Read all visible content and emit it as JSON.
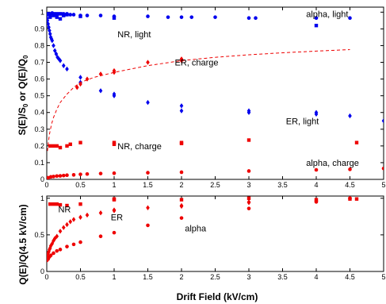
{
  "chart_data": [
    {
      "type": "scatter",
      "title": "",
      "xlabel": "",
      "ylabel_parts": [
        "S(E)/S",
        "0",
        " or Q(E)/Q",
        "0"
      ],
      "xlim": [
        0,
        5
      ],
      "ylim": [
        0,
        1.03
      ],
      "x_ticks": [
        "0",
        "0.5",
        "1",
        "1.5",
        "2",
        "2.5",
        "3",
        "3.5",
        "4",
        "4.5",
        "5"
      ],
      "y_ticks": [
        "0",
        "0.1",
        "0.2",
        "0.3",
        "0.4",
        "0.5",
        "0.6",
        "0.7",
        "0.8",
        "0.9",
        "1"
      ],
      "grid": false,
      "colors": {
        "light": "#0000ee",
        "charge": "#ee0000"
      },
      "annotations": [
        {
          "text": "alpha, light",
          "x": 3.85,
          "y": 0.97
        },
        {
          "text": "NR, light",
          "x": 1.05,
          "y": 0.85
        },
        {
          "text": "ER, charge",
          "x": 1.9,
          "y": 0.68
        },
        {
          "text": "ER, light",
          "x": 3.55,
          "y": 0.33
        },
        {
          "text": "NR, charge",
          "x": 1.05,
          "y": 0.18
        },
        {
          "text": "alpha, charge",
          "x": 3.85,
          "y": 0.08
        }
      ],
      "series": [
        {
          "label": "alpha, light",
          "marker": "circle",
          "color": "#0000ee",
          "x": [
            0,
            0.02,
            0.04,
            0.06,
            0.08,
            0.1,
            0.12,
            0.14,
            0.16,
            0.18,
            0.2,
            0.22,
            0.25,
            0.3,
            0.35,
            0.4,
            0.5,
            0.6,
            0.8,
            1.0,
            1.5,
            1.8,
            2.0,
            2.15,
            2.5,
            3.0,
            3.1,
            4.0,
            4.5
          ],
          "y": [
            0.99,
            0.99,
            0.99,
            0.99,
            0.995,
            0.99,
            0.99,
            0.99,
            0.99,
            0.99,
            0.99,
            0.99,
            0.99,
            0.99,
            0.985,
            0.985,
            0.98,
            0.98,
            0.98,
            0.975,
            0.975,
            0.97,
            0.97,
            0.97,
            0.97,
            0.965,
            0.965,
            0.965,
            0.965
          ]
        },
        {
          "label": "NR, light",
          "marker": "square",
          "color": "#0000ee",
          "x": [
            0,
            0.05,
            0.1,
            0.15,
            0.2,
            0.25,
            0.3,
            0.5,
            1.0,
            4.0
          ],
          "y": [
            0.96,
            0.97,
            0.98,
            0.97,
            0.96,
            0.98,
            0.985,
            0.975,
            0.965,
            0.92
          ]
        },
        {
          "label": "ER, light",
          "marker": "diamond",
          "color": "#0000ee",
          "x": [
            0,
            0.01,
            0.02,
            0.03,
            0.04,
            0.05,
            0.06,
            0.07,
            0.08,
            0.1,
            0.12,
            0.14,
            0.16,
            0.18,
            0.2,
            0.25,
            0.3,
            0.5,
            0.5,
            0.8,
            1.0,
            1.0,
            1.5,
            2.0,
            2.0,
            3.0,
            3.0,
            4.0,
            4.0,
            4.5,
            5.0
          ],
          "y": [
            0.98,
            0.95,
            0.93,
            0.91,
            0.89,
            0.87,
            0.85,
            0.84,
            0.83,
            0.8,
            0.77,
            0.75,
            0.73,
            0.72,
            0.71,
            0.68,
            0.66,
            0.61,
            0.58,
            0.53,
            0.51,
            0.5,
            0.46,
            0.44,
            0.41,
            0.41,
            0.4,
            0.4,
            0.39,
            0.38,
            0.35
          ]
        },
        {
          "label": "ER, charge",
          "marker": "diamond",
          "color": "#ee0000",
          "x": [
            0.45,
            0.5,
            0.6,
            0.8,
            1.0,
            1.0,
            1.5,
            2.0,
            2.0
          ],
          "y": [
            0.55,
            0.57,
            0.6,
            0.63,
            0.65,
            0.64,
            0.7,
            0.72,
            0.71
          ]
        },
        {
          "label": "NR, charge",
          "marker": "square",
          "color": "#ee0000",
          "x": [
            0.05,
            0.1,
            0.15,
            0.2,
            0.3,
            0.35,
            0.5,
            1.0,
            1.0,
            2.0,
            2.0,
            3.0,
            4.6
          ],
          "y": [
            0.2,
            0.2,
            0.2,
            0.19,
            0.2,
            0.21,
            0.22,
            0.22,
            0.21,
            0.22,
            0.215,
            0.235,
            0.22
          ]
        },
        {
          "label": "alpha, charge",
          "marker": "circle",
          "color": "#ee0000",
          "x": [
            0.02,
            0.06,
            0.1,
            0.15,
            0.2,
            0.25,
            0.3,
            0.4,
            0.5,
            0.6,
            0.8,
            1.0,
            1.5,
            2.0,
            3.0,
            4.0,
            4.5,
            5.0
          ],
          "y": [
            0.01,
            0.015,
            0.017,
            0.02,
            0.021,
            0.023,
            0.025,
            0.027,
            0.03,
            0.032,
            0.035,
            0.037,
            0.04,
            0.043,
            0.05,
            0.057,
            0.06,
            0.065
          ]
        },
        {
          "label": "ER, charge fit",
          "type": "line",
          "style": "dashed",
          "color": "#ee0000",
          "x": [
            0.01,
            0.02,
            0.04,
            0.07,
            0.1,
            0.15,
            0.2,
            0.3,
            0.4,
            0.5,
            0.7,
            1.0,
            1.5,
            2.0,
            2.5,
            3.0,
            3.5,
            4.0,
            4.5
          ],
          "y": [
            0.17,
            0.21,
            0.27,
            0.33,
            0.37,
            0.42,
            0.46,
            0.51,
            0.55,
            0.58,
            0.61,
            0.64,
            0.68,
            0.71,
            0.73,
            0.745,
            0.757,
            0.767,
            0.776
          ]
        }
      ]
    },
    {
      "type": "scatter",
      "title": "",
      "xlabel": "Drift Field (kV/cm)",
      "ylabel": "Q(E)/Q(4.5 kV/cm)",
      "xlim": [
        0,
        5
      ],
      "ylim": [
        0,
        1.03
      ],
      "x_ticks": [
        "0",
        "0.5",
        "1",
        "1.5",
        "2",
        "2.5",
        "3",
        "3.5",
        "4",
        "4.5",
        "5"
      ],
      "y_ticks": [
        "0",
        "0.5",
        "1"
      ],
      "grid": false,
      "annotations": [
        {
          "text": "NR",
          "x": 0.17,
          "y": 0.81
        },
        {
          "text": "ER",
          "x": 0.95,
          "y": 0.7
        },
        {
          "text": "alpha",
          "x": 2.05,
          "y": 0.55
        }
      ],
      "series": [
        {
          "label": "NR",
          "marker": "square",
          "color": "#ee0000",
          "x": [
            0.05,
            0.1,
            0.15,
            0.2,
            0.3,
            0.5,
            1.0,
            1.0,
            2.0,
            3.0,
            4.0,
            4.5,
            4.6
          ],
          "y": [
            0.92,
            0.92,
            0.92,
            0.91,
            0.9,
            0.92,
            0.98,
            0.99,
            0.98,
            1.0,
            0.98,
            0.99,
            0.99
          ]
        },
        {
          "label": "ER",
          "marker": "diamond",
          "color": "#ee0000",
          "x": [
            0,
            0.01,
            0.02,
            0.03,
            0.04,
            0.05,
            0.06,
            0.08,
            0.1,
            0.12,
            0.15,
            0.2,
            0.25,
            0.3,
            0.35,
            0.4,
            0.5,
            0.6,
            0.8,
            1.0,
            1.0,
            1.5,
            2.0,
            2.0,
            3.0,
            3.0,
            4.0,
            4.0,
            4.5
          ],
          "y": [
            0.2,
            0.23,
            0.25,
            0.27,
            0.3,
            0.32,
            0.35,
            0.38,
            0.42,
            0.45,
            0.48,
            0.55,
            0.6,
            0.64,
            0.68,
            0.71,
            0.74,
            0.77,
            0.8,
            0.84,
            0.83,
            0.87,
            0.9,
            0.89,
            0.95,
            0.94,
            0.97,
            0.96,
            1.0
          ]
        },
        {
          "label": "alpha",
          "marker": "circle",
          "color": "#ee0000",
          "x": [
            0,
            0.02,
            0.04,
            0.06,
            0.1,
            0.15,
            0.2,
            0.3,
            0.4,
            0.5,
            0.8,
            1.0,
            1.5,
            2.0,
            3.0,
            4.0,
            4.5
          ],
          "y": [
            0.15,
            0.17,
            0.2,
            0.22,
            0.25,
            0.28,
            0.3,
            0.34,
            0.37,
            0.4,
            0.48,
            0.53,
            0.63,
            0.73,
            0.86,
            0.95,
            1.0
          ]
        }
      ]
    }
  ]
}
